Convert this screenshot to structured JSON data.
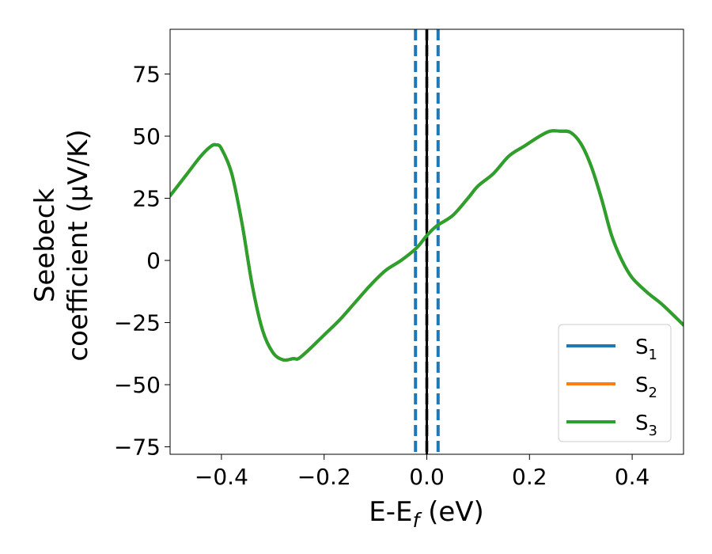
{
  "chart_data": {
    "type": "line",
    "xlabel": {
      "main": "E-E",
      "sub": "f",
      "suffix": " (eV)"
    },
    "ylabel": {
      "line1": "Seebeck",
      "line2": "coefficient  (μV/K)"
    },
    "xlim": [
      -0.5,
      0.5
    ],
    "ylim": [
      -78,
      93
    ],
    "xticks": [
      -0.4,
      -0.2,
      0.0,
      0.2,
      0.4
    ],
    "xtick_labels": [
      "−0.4",
      "−0.2",
      "0.0",
      "0.2",
      "0.4"
    ],
    "yticks": [
      75,
      50,
      25,
      0,
      -25,
      -50,
      -75
    ],
    "ytick_labels": [
      "75",
      "50",
      "25",
      "0",
      "−25",
      "−50",
      "−75"
    ],
    "legend_placement": "lower-right",
    "grid": false,
    "series": [
      {
        "name": "S1",
        "label_main": "S",
        "label_sub": "1",
        "color": "#1f77b4"
      },
      {
        "name": "S2",
        "label_main": "S",
        "label_sub": "2",
        "color": "#ff7f0e"
      },
      {
        "name": "S3",
        "label_main": "S",
        "label_sub": "3",
        "color": "#2ca02c"
      }
    ],
    "x": [
      -0.5,
      -0.47,
      -0.44,
      -0.42,
      -0.41,
      -0.4,
      -0.38,
      -0.36,
      -0.34,
      -0.32,
      -0.3,
      -0.28,
      -0.26,
      -0.25,
      -0.23,
      -0.2,
      -0.17,
      -0.14,
      -0.11,
      -0.08,
      -0.05,
      -0.02,
      0.0,
      0.02,
      0.05,
      0.08,
      0.1,
      0.13,
      0.16,
      0.19,
      0.22,
      0.24,
      0.26,
      0.28,
      0.3,
      0.32,
      0.34,
      0.36,
      0.38,
      0.4,
      0.43,
      0.46,
      0.5
    ],
    "y": [
      26,
      34,
      42,
      46,
      46.5,
      45,
      35,
      15,
      -10,
      -28,
      -37,
      -40,
      -39.5,
      -39.5,
      -36,
      -30,
      -24,
      -17,
      -10,
      -4,
      0,
      5,
      10,
      14,
      18,
      25,
      30,
      35,
      42,
      46,
      50,
      52,
      52,
      51.5,
      47,
      38,
      25,
      10,
      0,
      -7,
      -13,
      -18,
      -26
    ],
    "vlines": [
      {
        "x": -0.022,
        "color": "#1f77b4",
        "style": "dashed"
      },
      {
        "x": 0.0,
        "color": "#1f77b4",
        "style": "dashed"
      },
      {
        "x": 0.022,
        "color": "#1f77b4",
        "style": "dashed"
      },
      {
        "x": 0.0,
        "color": "#000000",
        "style": "solid"
      }
    ]
  }
}
